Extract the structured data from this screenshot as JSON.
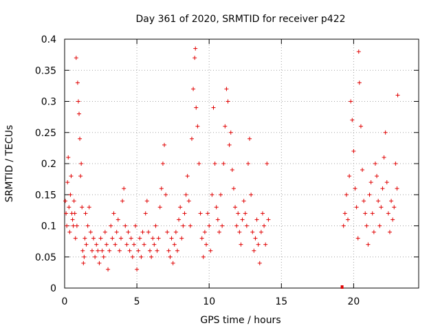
{
  "chart_data": {
    "type": "scatter",
    "title": "Day 361 of 2020, SRMTID for receiver p422",
    "xlabel": "GPS time / hours",
    "ylabel": "SRMTID / TECUs",
    "xlim": [
      0,
      24.5
    ],
    "ylim": [
      0,
      0.4
    ],
    "xticks": [
      0,
      5,
      10,
      15,
      20
    ],
    "yticks": [
      0,
      0.05,
      0.1,
      0.15,
      0.2,
      0.25,
      0.3,
      0.35,
      0.4
    ],
    "xtick_labels": [
      "0",
      "5",
      "10",
      "15",
      "20"
    ],
    "ytick_labels": [
      "0",
      "0.05",
      "0.1",
      "0.15",
      "0.2",
      "0.25",
      "0.3",
      "0.35",
      "0.4"
    ],
    "grid": true,
    "marker": "+",
    "color": "#e00000",
    "series": [
      {
        "name": "SRMTID",
        "points": [
          [
            0.05,
            0.14
          ],
          [
            0.1,
            0.12
          ],
          [
            0.15,
            0.1
          ],
          [
            0.2,
            0.17
          ],
          [
            0.25,
            0.21
          ],
          [
            0.3,
            0.13
          ],
          [
            0.35,
            0.09
          ],
          [
            0.4,
            0.15
          ],
          [
            0.45,
            0.18
          ],
          [
            0.5,
            0.12
          ],
          [
            0.55,
            0.11
          ],
          [
            0.6,
            0.1
          ],
          [
            0.65,
            0.14
          ],
          [
            0.7,
            0.12
          ],
          [
            0.75,
            0.08
          ],
          [
            0.8,
            0.37
          ],
          [
            0.85,
            0.1
          ],
          [
            0.9,
            0.33
          ],
          [
            0.95,
            0.3
          ],
          [
            1.0,
            0.28
          ],
          [
            1.05,
            0.24
          ],
          [
            1.1,
            0.18
          ],
          [
            1.15,
            0.2
          ],
          [
            1.2,
            0.13
          ],
          [
            1.25,
            0.06
          ],
          [
            1.3,
            0.04
          ],
          [
            1.35,
            0.05
          ],
          [
            1.4,
            0.08
          ],
          [
            1.45,
            0.12
          ],
          [
            1.5,
            0.07
          ],
          [
            1.6,
            0.1
          ],
          [
            1.7,
            0.13
          ],
          [
            1.8,
            0.09
          ],
          [
            1.9,
            0.06
          ],
          [
            2.0,
            0.08
          ],
          [
            2.1,
            0.05
          ],
          [
            2.2,
            0.07
          ],
          [
            2.3,
            0.06
          ],
          [
            2.4,
            0.04
          ],
          [
            2.5,
            0.08
          ],
          [
            2.6,
            0.06
          ],
          [
            2.7,
            0.05
          ],
          [
            2.8,
            0.09
          ],
          [
            2.9,
            0.07
          ],
          [
            3.0,
            0.03
          ],
          [
            3.1,
            0.06
          ],
          [
            3.2,
            0.1
          ],
          [
            3.3,
            0.08
          ],
          [
            3.4,
            0.12
          ],
          [
            3.5,
            0.07
          ],
          [
            3.6,
            0.09
          ],
          [
            3.7,
            0.11
          ],
          [
            3.8,
            0.06
          ],
          [
            3.9,
            0.08
          ],
          [
            4.0,
            0.14
          ],
          [
            4.1,
            0.16
          ],
          [
            4.2,
            0.1
          ],
          [
            4.3,
            0.07
          ],
          [
            4.4,
            0.09
          ],
          [
            4.5,
            0.06
          ],
          [
            4.6,
            0.08
          ],
          [
            4.7,
            0.05
          ],
          [
            4.8,
            0.07
          ],
          [
            4.9,
            0.1
          ],
          [
            5.0,
            0.03
          ],
          [
            5.1,
            0.06
          ],
          [
            5.2,
            0.08
          ],
          [
            5.3,
            0.05
          ],
          [
            5.4,
            0.09
          ],
          [
            5.5,
            0.07
          ],
          [
            5.6,
            0.12
          ],
          [
            5.7,
            0.14
          ],
          [
            5.8,
            0.09
          ],
          [
            5.9,
            0.06
          ],
          [
            6.0,
            0.05
          ],
          [
            6.1,
            0.08
          ],
          [
            6.2,
            0.07
          ],
          [
            6.3,
            0.1
          ],
          [
            6.4,
            0.06
          ],
          [
            6.5,
            0.08
          ],
          [
            6.6,
            0.13
          ],
          [
            6.7,
            0.16
          ],
          [
            6.8,
            0.2
          ],
          [
            6.9,
            0.23
          ],
          [
            7.0,
            0.15
          ],
          [
            7.1,
            0.09
          ],
          [
            7.2,
            0.06
          ],
          [
            7.3,
            0.05
          ],
          [
            7.4,
            0.08
          ],
          [
            7.5,
            0.04
          ],
          [
            7.6,
            0.07
          ],
          [
            7.7,
            0.09
          ],
          [
            7.8,
            0.06
          ],
          [
            7.9,
            0.11
          ],
          [
            8.0,
            0.13
          ],
          [
            8.1,
            0.08
          ],
          [
            8.2,
            0.1
          ],
          [
            8.3,
            0.12
          ],
          [
            8.4,
            0.15
          ],
          [
            8.5,
            0.18
          ],
          [
            8.6,
            0.14
          ],
          [
            8.7,
            0.1
          ],
          [
            8.8,
            0.24
          ],
          [
            8.9,
            0.32
          ],
          [
            9.0,
            0.37
          ],
          [
            9.05,
            0.385
          ],
          [
            9.1,
            0.29
          ],
          [
            9.2,
            0.26
          ],
          [
            9.3,
            0.2
          ],
          [
            9.4,
            0.12
          ],
          [
            9.5,
            0.08
          ],
          [
            9.6,
            0.05
          ],
          [
            9.7,
            0.09
          ],
          [
            9.8,
            0.07
          ],
          [
            9.9,
            0.12
          ],
          [
            10.0,
            0.1
          ],
          [
            10.1,
            0.06
          ],
          [
            10.2,
            0.15
          ],
          [
            10.3,
            0.29
          ],
          [
            10.4,
            0.2
          ],
          [
            10.5,
            0.13
          ],
          [
            10.6,
            0.11
          ],
          [
            10.7,
            0.09
          ],
          [
            10.8,
            0.15
          ],
          [
            10.9,
            0.1
          ],
          [
            11.0,
            0.2
          ],
          [
            11.1,
            0.26
          ],
          [
            11.2,
            0.32
          ],
          [
            11.3,
            0.3
          ],
          [
            11.4,
            0.23
          ],
          [
            11.5,
            0.25
          ],
          [
            11.6,
            0.19
          ],
          [
            11.7,
            0.16
          ],
          [
            11.8,
            0.13
          ],
          [
            11.9,
            0.1
          ],
          [
            12.0,
            0.12
          ],
          [
            12.1,
            0.09
          ],
          [
            12.2,
            0.07
          ],
          [
            12.3,
            0.11
          ],
          [
            12.4,
            0.14
          ],
          [
            12.5,
            0.12
          ],
          [
            12.6,
            0.1
          ],
          [
            12.7,
            0.2
          ],
          [
            12.8,
            0.24
          ],
          [
            12.9,
            0.15
          ],
          [
            13.0,
            0.09
          ],
          [
            13.1,
            0.06
          ],
          [
            13.2,
            0.08
          ],
          [
            13.3,
            0.11
          ],
          [
            13.4,
            0.07
          ],
          [
            13.5,
            0.04
          ],
          [
            13.6,
            0.09
          ],
          [
            13.7,
            0.12
          ],
          [
            13.8,
            0.1
          ],
          [
            13.9,
            0.07
          ],
          [
            14.0,
            0.2
          ],
          [
            14.1,
            0.11
          ],
          [
            19.3,
            0.1
          ],
          [
            19.4,
            0.12
          ],
          [
            19.5,
            0.15
          ],
          [
            19.6,
            0.11
          ],
          [
            19.7,
            0.18
          ],
          [
            19.8,
            0.3
          ],
          [
            19.9,
            0.27
          ],
          [
            20.0,
            0.22
          ],
          [
            20.1,
            0.16
          ],
          [
            20.2,
            0.13
          ],
          [
            20.3,
            0.08
          ],
          [
            20.35,
            0.38
          ],
          [
            20.4,
            0.33
          ],
          [
            20.5,
            0.26
          ],
          [
            20.6,
            0.19
          ],
          [
            20.7,
            0.14
          ],
          [
            20.8,
            0.12
          ],
          [
            20.9,
            0.1
          ],
          [
            21.0,
            0.07
          ],
          [
            21.1,
            0.15
          ],
          [
            21.2,
            0.17
          ],
          [
            21.3,
            0.12
          ],
          [
            21.4,
            0.09
          ],
          [
            21.5,
            0.2
          ],
          [
            21.6,
            0.18
          ],
          [
            21.7,
            0.14
          ],
          [
            21.8,
            0.1
          ],
          [
            21.9,
            0.13
          ],
          [
            22.0,
            0.16
          ],
          [
            22.1,
            0.21
          ],
          [
            22.2,
            0.25
          ],
          [
            22.3,
            0.17
          ],
          [
            22.4,
            0.12
          ],
          [
            22.5,
            0.09
          ],
          [
            22.6,
            0.14
          ],
          [
            22.7,
            0.11
          ],
          [
            22.8,
            0.13
          ],
          [
            22.9,
            0.2
          ],
          [
            23.0,
            0.16
          ],
          [
            23.05,
            0.31
          ]
        ]
      }
    ],
    "annotations": [
      {
        "type": "marker",
        "x": 19.2,
        "y": 0.0,
        "shape": "small-red-block"
      }
    ]
  }
}
